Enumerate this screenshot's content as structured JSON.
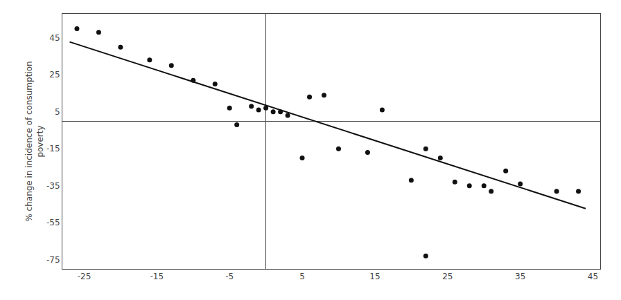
{
  "chart_data": {
    "type": "scatter",
    "ylabel": "% change in incidence of consumption\npoverty",
    "series": [
      {
        "type": "scatter",
        "marker": "circle",
        "color": "#111111",
        "x": [
          -26,
          -23,
          -20,
          -16,
          -13,
          -10,
          -7,
          -5,
          -4,
          -2,
          -1,
          0,
          1,
          2,
          3,
          5,
          6,
          8,
          10,
          14,
          16,
          20,
          22,
          24,
          26,
          28,
          30,
          31,
          33,
          35,
          40,
          43,
          22
        ],
        "values": [
          50,
          48,
          40,
          33,
          30,
          22,
          20,
          7,
          -2,
          8,
          6,
          7,
          5,
          5,
          3,
          -20,
          13,
          14,
          -15,
          -17,
          6,
          -32,
          -15,
          -20,
          -33,
          -35,
          -35,
          -38,
          -27,
          -34,
          -38,
          -38,
          -73
        ]
      },
      {
        "type": "line",
        "line_style": "solid",
        "color": "#111111",
        "x": [
          -27,
          44
        ],
        "values": [
          42.79,
          -47.38
        ]
      }
    ],
    "xlim": [
      -28,
      46
    ],
    "ylim": [
      -80,
      58
    ],
    "xticks": [
      -25,
      -15,
      -5,
      5,
      15,
      25,
      35,
      45
    ],
    "yticks": [
      -75,
      -55,
      -35,
      -15,
      5,
      25,
      45
    ],
    "grid": false
  }
}
